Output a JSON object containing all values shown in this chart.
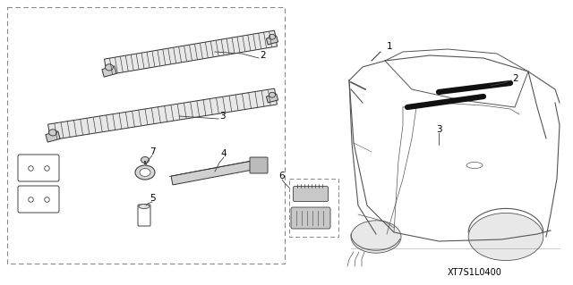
{
  "bg_color": "#ffffff",
  "line_color": "#404040",
  "dashed_color": "#888888",
  "code_label": "XT7S1L0400",
  "bar_hatch_color": "#666666",
  "bar_fill": "#e0e0e0",
  "car_line_color": "#555555"
}
